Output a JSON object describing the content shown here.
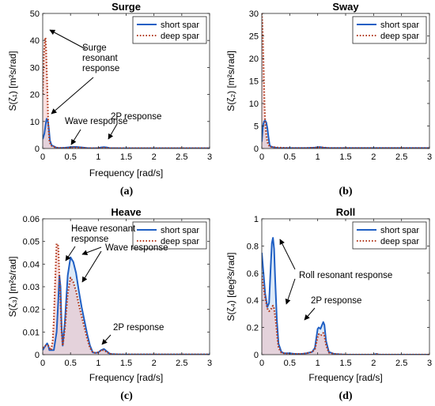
{
  "colors": {
    "short_spar": "#1f5fc4",
    "deep_spar": "#b23a1e",
    "short_fill": "#9ec2ec",
    "deep_fill": "#f2a7a7"
  },
  "chart_data": [
    {
      "type": "line",
      "title": "Surge",
      "xlabel": "Frequency [rad/s]",
      "ylabel": "S(ζ₁) [m²s/rad]",
      "panel_label": "(a)",
      "xlim": [
        0,
        3
      ],
      "ylim": [
        0,
        50
      ],
      "xticks": [
        "0",
        "0.5",
        "1",
        "1.5",
        "2",
        "2.5",
        "3"
      ],
      "yticks": [
        "0",
        "10",
        "20",
        "30",
        "40",
        "50"
      ],
      "legend": "top-right",
      "series": [
        {
          "name": "short spar",
          "style": "solid",
          "x": [
            0,
            0.03,
            0.05,
            0.07,
            0.09,
            0.11,
            0.13,
            0.16,
            0.2,
            0.25,
            0.3,
            0.4,
            0.5,
            0.55,
            0.6,
            0.7,
            0.8,
            0.9,
            1.0,
            1.05,
            1.1,
            1.15,
            1.2,
            1.4,
            1.6,
            2.0,
            2.5,
            3.0
          ],
          "y": [
            3.5,
            5.5,
            8.5,
            11.0,
            10.5,
            7.5,
            3.0,
            1.2,
            0.8,
            0.3,
            0.2,
            0.3,
            0.5,
            0.6,
            0.6,
            0.4,
            0.2,
            0.1,
            0.2,
            0.4,
            0.5,
            0.4,
            0.2,
            0.1,
            0.1,
            0.1,
            0.1,
            0.1
          ]
        },
        {
          "name": "deep spar",
          "style": "dotted",
          "x": [
            0,
            0.02,
            0.04,
            0.05,
            0.06,
            0.08,
            0.1,
            0.12,
            0.14,
            0.16,
            0.2,
            0.25,
            0.3,
            0.4,
            0.5,
            0.55,
            0.6,
            0.7,
            0.8,
            0.9,
            1.0,
            1.05,
            1.1,
            1.15,
            1.2,
            1.4,
            1.6,
            2.0,
            2.5,
            3.0
          ],
          "y": [
            20,
            34,
            40.5,
            41,
            37,
            24,
            9,
            3,
            1.5,
            1.0,
            0.6,
            0.3,
            0.2,
            0.2,
            0.3,
            0.4,
            0.4,
            0.3,
            0.1,
            0.1,
            0.1,
            0.2,
            0.3,
            0.2,
            0.1,
            0.1,
            0.1,
            0.1,
            0.1,
            0.1
          ]
        }
      ],
      "annotations": [
        {
          "lines": [
            "Surge",
            "resonant",
            "response"
          ]
        },
        {
          "lines": [
            "Wave response"
          ]
        },
        {
          "lines": [
            "2P response"
          ]
        }
      ]
    },
    {
      "type": "line",
      "title": "Sway",
      "xlabel": "",
      "ylabel": "S(ζ₂) [m²s/rad]",
      "panel_label": "(b)",
      "xlim": [
        0,
        3
      ],
      "ylim": [
        0,
        30
      ],
      "xticks": [
        "0",
        "0.5",
        "1",
        "1.5",
        "2",
        "2.5",
        "3"
      ],
      "yticks": [
        "0",
        "5",
        "10",
        "15",
        "20",
        "25",
        "30"
      ],
      "legend": "top-right",
      "series": [
        {
          "name": "short spar",
          "style": "solid",
          "x": [
            0,
            0.02,
            0.04,
            0.06,
            0.08,
            0.1,
            0.12,
            0.14,
            0.16,
            0.18,
            0.2,
            0.25,
            0.3,
            0.5,
            0.8,
            0.95,
            1.0,
            1.05,
            1.1,
            1.2,
            1.5,
            2.0,
            2.5,
            3.0
          ],
          "y": [
            1.5,
            5.0,
            6.0,
            6.2,
            5.8,
            4.5,
            2.5,
            0.8,
            0.4,
            0.4,
            0.3,
            0.2,
            0.1,
            0.1,
            0.1,
            0.2,
            0.3,
            0.3,
            0.2,
            0.1,
            0.1,
            0.1,
            0.1,
            0.1
          ]
        },
        {
          "name": "deep spar",
          "style": "dotted",
          "x": [
            0,
            0.01,
            0.02,
            0.03,
            0.04,
            0.05,
            0.06,
            0.08,
            0.1,
            0.12,
            0.14,
            0.16,
            0.2,
            0.3,
            0.5,
            0.8,
            1.0,
            1.05,
            1.1,
            1.2,
            1.5,
            2.0,
            3.0
          ],
          "y": [
            30,
            28,
            24,
            19,
            14,
            9,
            6,
            3,
            1.5,
            0.8,
            0.5,
            0.4,
            0.3,
            0.2,
            0.1,
            0.1,
            0.2,
            0.3,
            0.2,
            0.1,
            0.1,
            0.1,
            0.1
          ]
        }
      ]
    },
    {
      "type": "line",
      "title": "Heave",
      "xlabel": "Frequency [rad/s]",
      "ylabel": "S(ζ₃) [m²s/rad]",
      "panel_label": "(c)",
      "xlim": [
        0,
        3
      ],
      "ylim": [
        0,
        0.06
      ],
      "xticks": [
        "0",
        "0.5",
        "1",
        "1.5",
        "2",
        "2.5",
        "3"
      ],
      "yticks": [
        "0",
        "0.01",
        "0.02",
        "0.03",
        "0.04",
        "0.05",
        "0.06"
      ],
      "legend": "top-right",
      "series": [
        {
          "name": "short spar",
          "style": "solid",
          "x": [
            0,
            0.05,
            0.08,
            0.1,
            0.12,
            0.15,
            0.2,
            0.25,
            0.28,
            0.3,
            0.32,
            0.34,
            0.36,
            0.4,
            0.45,
            0.5,
            0.55,
            0.6,
            0.65,
            0.7,
            0.75,
            0.8,
            0.85,
            0.9,
            0.95,
            1.0,
            1.05,
            1.1,
            1.15,
            1.2,
            1.25,
            1.4,
            1.8,
            2.5,
            3.0
          ],
          "y": [
            0.002,
            0.004,
            0.005,
            0.004,
            0.002,
            0.002,
            0.002,
            0.01,
            0.024,
            0.035,
            0.03,
            0.012,
            0.004,
            0.015,
            0.035,
            0.043,
            0.041,
            0.036,
            0.028,
            0.021,
            0.015,
            0.009,
            0.004,
            0.001,
            0.0008,
            0.001,
            0.002,
            0.0025,
            0.0015,
            0.0005,
            0.0002,
            0.0001,
            0.0001,
            0.0001,
            0.0001
          ]
        },
        {
          "name": "deep spar",
          "style": "dotted",
          "x": [
            0,
            0.05,
            0.08,
            0.1,
            0.12,
            0.15,
            0.18,
            0.2,
            0.22,
            0.25,
            0.28,
            0.3,
            0.32,
            0.34,
            0.36,
            0.4,
            0.45,
            0.5,
            0.55,
            0.6,
            0.65,
            0.7,
            0.75,
            0.8,
            0.85,
            0.9,
            0.95,
            1.0,
            1.05,
            1.1,
            1.15,
            1.2,
            1.25,
            1.4,
            1.8,
            2.5,
            3.0
          ],
          "y": [
            0.003,
            0.004,
            0.004,
            0.004,
            0.003,
            0.002,
            0.006,
            0.015,
            0.03,
            0.049,
            0.048,
            0.034,
            0.024,
            0.01,
            0.004,
            0.012,
            0.027,
            0.034,
            0.032,
            0.028,
            0.022,
            0.017,
            0.012,
            0.007,
            0.003,
            0.001,
            0.0008,
            0.001,
            0.002,
            0.002,
            0.0012,
            0.0004,
            0.0002,
            0.0001,
            0.0001,
            0.0001,
            0.0001
          ]
        }
      ],
      "annotations": [
        {
          "lines": [
            "Heave resonant",
            "response"
          ]
        },
        {
          "lines": [
            "Wave response"
          ]
        },
        {
          "lines": [
            "2P response"
          ]
        }
      ]
    },
    {
      "type": "line",
      "title": "Roll",
      "xlabel": "Frequency [rad/s]",
      "ylabel": "S(ζ₄) [deg²s/rad]",
      "panel_label": "(d)",
      "xlim": [
        0,
        3
      ],
      "ylim": [
        0,
        1
      ],
      "xticks": [
        "0",
        "0.5",
        "1",
        "1.5",
        "2",
        "2.5",
        "3"
      ],
      "yticks": [
        "0",
        "0.2",
        "0.4",
        "0.6",
        "0.8",
        "1"
      ],
      "legend": "top-right",
      "series": [
        {
          "name": "short spar",
          "style": "solid",
          "x": [
            0,
            0.03,
            0.06,
            0.1,
            0.13,
            0.16,
            0.18,
            0.2,
            0.22,
            0.24,
            0.27,
            0.3,
            0.35,
            0.4,
            0.5,
            0.6,
            0.7,
            0.8,
            0.9,
            0.95,
            1.0,
            1.02,
            1.05,
            1.08,
            1.1,
            1.12,
            1.15,
            1.2,
            1.3,
            1.5,
            1.8,
            2.0,
            2.05,
            2.1,
            2.5,
            3.0
          ],
          "y": [
            0.75,
            0.6,
            0.45,
            0.35,
            0.38,
            0.65,
            0.82,
            0.86,
            0.78,
            0.55,
            0.25,
            0.08,
            0.02,
            0.01,
            0.01,
            0.005,
            0.005,
            0.01,
            0.02,
            0.05,
            0.19,
            0.2,
            0.19,
            0.22,
            0.24,
            0.22,
            0.1,
            0.02,
            0.005,
            0.0,
            0.0,
            0.0,
            0.005,
            0.0,
            0.0,
            0.0
          ]
        },
        {
          "name": "deep spar",
          "style": "dotted",
          "x": [
            0,
            0.03,
            0.06,
            0.1,
            0.13,
            0.16,
            0.18,
            0.2,
            0.22,
            0.25,
            0.28,
            0.3,
            0.35,
            0.4,
            0.5,
            0.6,
            0.7,
            0.8,
            0.9,
            0.95,
            1.0,
            1.02,
            1.05,
            1.08,
            1.1,
            1.12,
            1.15,
            1.2,
            1.3,
            1.5,
            1.8,
            2.0,
            2.05,
            2.1,
            2.5,
            3.0
          ],
          "y": [
            0.58,
            0.5,
            0.42,
            0.34,
            0.32,
            0.33,
            0.35,
            0.36,
            0.34,
            0.25,
            0.12,
            0.05,
            0.015,
            0.01,
            0.005,
            0.005,
            0.005,
            0.01,
            0.02,
            0.04,
            0.13,
            0.15,
            0.14,
            0.15,
            0.16,
            0.14,
            0.07,
            0.015,
            0.005,
            0.0,
            0.0,
            0.0,
            0.005,
            0.0,
            0.0,
            0.0
          ]
        }
      ],
      "annotations": [
        {
          "lines": [
            "Roll resonant response"
          ]
        },
        {
          "lines": [
            "2P response"
          ]
        }
      ]
    }
  ]
}
